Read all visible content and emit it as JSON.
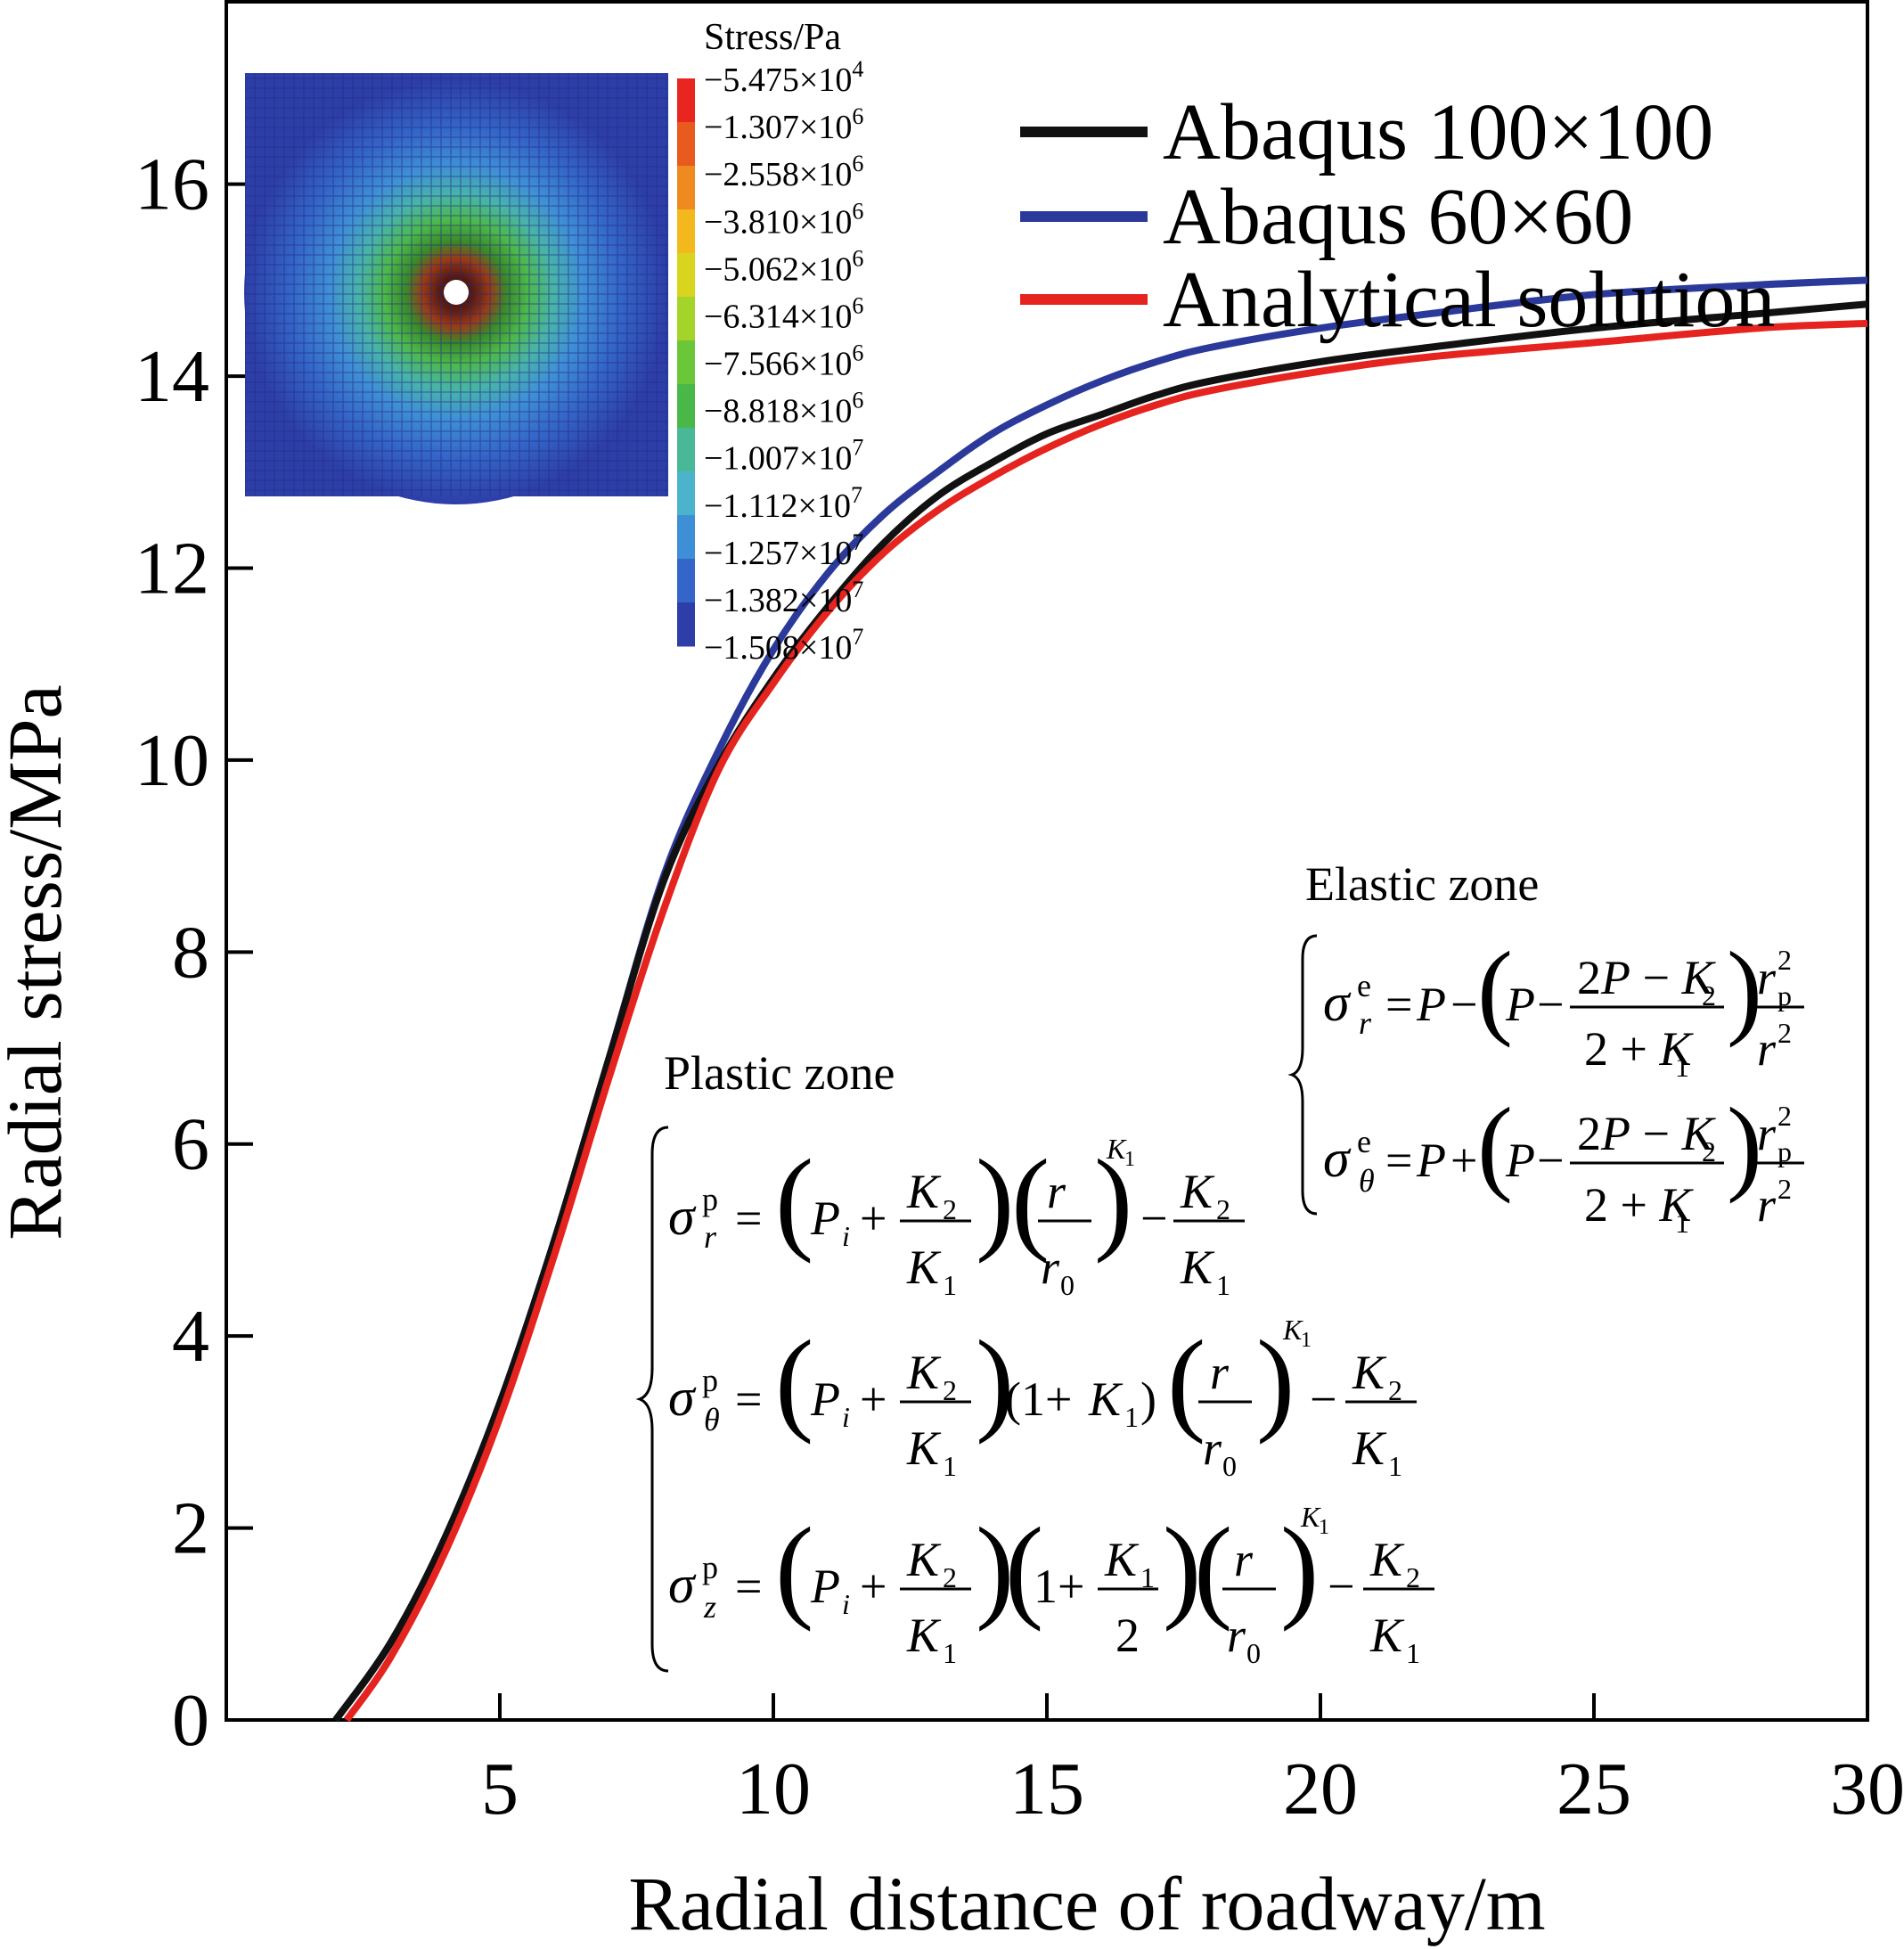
{
  "chart_data": {
    "type": "line",
    "xlabel": "Radial distance of roadway/m",
    "ylabel": "Radial stress/MPa",
    "xlim": [
      0,
      30
    ],
    "ylim": [
      0,
      17.9
    ],
    "x_ticks": [
      5,
      10,
      15,
      20,
      25,
      30
    ],
    "y_ticks": [
      0,
      2,
      4,
      6,
      8,
      10,
      12,
      14,
      16
    ],
    "legend_position": "top-right",
    "series": [
      {
        "name": "Abaqus 100×100",
        "color": "#111111",
        "x": [
          2.0,
          3.0,
          4.0,
          5.0,
          6.0,
          7.0,
          8.0,
          9.0,
          10.0,
          11.0,
          12.0,
          13.0,
          14.0,
          15.0,
          16.0,
          17.0,
          18.0,
          20.0,
          22.0,
          25.0,
          28.0,
          30.0
        ],
        "y": [
          0.0,
          0.8,
          1.9,
          3.3,
          5.0,
          6.9,
          8.75,
          9.95,
          10.85,
          11.6,
          12.25,
          12.75,
          13.1,
          13.4,
          13.6,
          13.8,
          13.95,
          14.15,
          14.3,
          14.5,
          14.65,
          14.75
        ]
      },
      {
        "name": "Abaqus 60×60",
        "color": "#2b3a9a",
        "x": [
          2.0,
          3.0,
          4.0,
          5.0,
          6.0,
          7.0,
          8.0,
          9.0,
          10.0,
          11.0,
          12.0,
          13.0,
          14.0,
          15.0,
          16.0,
          17.0,
          18.0,
          20.0,
          22.0,
          25.0,
          28.0,
          30.0
        ],
        "y": [
          0.0,
          0.8,
          1.9,
          3.3,
          5.0,
          6.9,
          8.8,
          10.1,
          11.15,
          11.95,
          12.55,
          13.0,
          13.4,
          13.7,
          13.95,
          14.15,
          14.3,
          14.5,
          14.65,
          14.85,
          14.95,
          15.0
        ]
      },
      {
        "name": "Analytical solution",
        "color": "#e5231f",
        "x": [
          2.2,
          3.0,
          4.0,
          5.0,
          6.0,
          7.0,
          8.0,
          9.0,
          10.0,
          11.0,
          12.0,
          13.0,
          14.0,
          15.0,
          16.0,
          17.0,
          18.0,
          20.0,
          22.0,
          25.0,
          28.0,
          30.0
        ],
        "y": [
          0.0,
          0.65,
          1.75,
          3.15,
          4.85,
          6.7,
          8.45,
          9.9,
          10.8,
          11.55,
          12.15,
          12.6,
          12.95,
          13.25,
          13.5,
          13.7,
          13.85,
          14.05,
          14.2,
          14.35,
          14.5,
          14.55
        ]
      }
    ],
    "inset": {
      "colorbar_title": "Stress/Pa",
      "colorbar_labels": [
        {
          "mant": "−5.475×10",
          "exp": "4"
        },
        {
          "mant": "−1.307×10",
          "exp": "6"
        },
        {
          "mant": "−2.558×10",
          "exp": "6"
        },
        {
          "mant": "−3.810×10",
          "exp": "6"
        },
        {
          "mant": "−5.062×10",
          "exp": "6"
        },
        {
          "mant": "−6.314×10",
          "exp": "6"
        },
        {
          "mant": "−7.566×10",
          "exp": "6"
        },
        {
          "mant": "−8.818×10",
          "exp": "6"
        },
        {
          "mant": "−1.007×10",
          "exp": "7"
        },
        {
          "mant": "−1.112×10",
          "exp": "7"
        },
        {
          "mant": "−1.257×10",
          "exp": "7"
        },
        {
          "mant": "−1.382×10",
          "exp": "7"
        },
        {
          "mant": "−1.508×10",
          "exp": "7"
        }
      ],
      "colorbar_colors": [
        "#e8251e",
        "#e85a1e",
        "#ee8a20",
        "#f2b81e",
        "#d9d51e",
        "#a4d42a",
        "#6cc63a",
        "#4ab848",
        "#48b896",
        "#4bb4cc",
        "#3f8fd6",
        "#3465c8",
        "#2d3ea8"
      ]
    },
    "annotations": {
      "plastic_zone_label": "Plastic zone",
      "elastic_zone_label": "Elastic zone"
    }
  }
}
